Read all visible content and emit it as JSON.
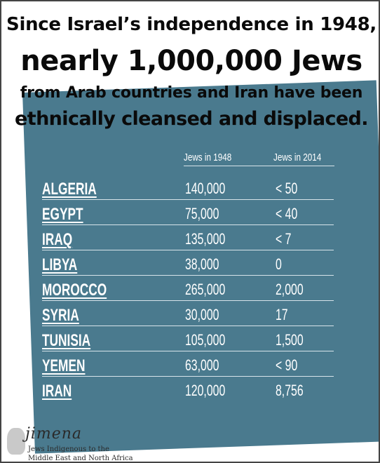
{
  "headline": {
    "line1": "Since Israel’s independence in 1948,",
    "line2": "nearly 1,000,000 Jews",
    "line3": "from Arab countries and Iran have been",
    "line4": "ethnically cleansed and displaced."
  },
  "table": {
    "columns": [
      "Jews in 1948",
      "Jews in 2014"
    ],
    "rows": [
      {
        "country": "ALGERIA",
        "jews_1948": "140,000",
        "jews_2014": "< 50"
      },
      {
        "country": "EGYPT",
        "jews_1948": "75,000",
        "jews_2014": "< 40"
      },
      {
        "country": "IRAQ",
        "jews_1948": "135,000",
        "jews_2014": "< 7"
      },
      {
        "country": "LIBYA",
        "jews_1948": "38,000",
        "jews_2014": "0"
      },
      {
        "country": "MOROCCO",
        "jews_1948": "265,000",
        "jews_2014": "2,000"
      },
      {
        "country": "SYRIA",
        "jews_1948": "30,000",
        "jews_2014": "17"
      },
      {
        "country": "TUNISIA",
        "jews_1948": "105,000",
        "jews_2014": "1,500"
      },
      {
        "country": "YEMEN",
        "jews_1948": "63,000",
        "jews_2014": "< 90"
      },
      {
        "country": "IRAN",
        "jews_1948": "120,000",
        "jews_2014": "8,756"
      }
    ]
  },
  "logo": {
    "name": "jimena",
    "tagline1": "Jews Indigenous to the",
    "tagline2": "Middle East and North Africa"
  },
  "colors": {
    "panel": "#4a7a8e",
    "text_on_panel": "#ffffff",
    "headline": "#0a0a0a"
  }
}
